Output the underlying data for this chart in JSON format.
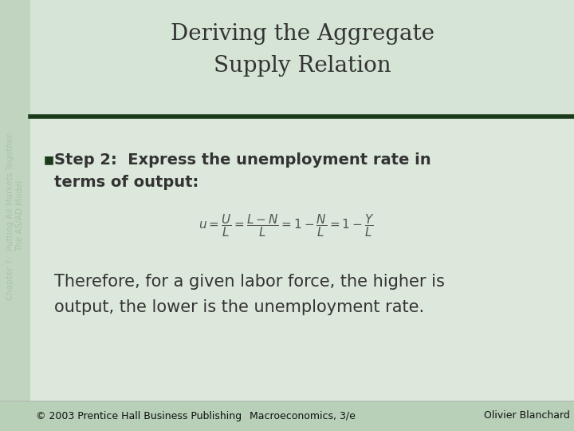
{
  "title_line1": "Deriving the Aggregate",
  "title_line2": "Supply Relation",
  "bullet_text_line1": "Step 2:  Express the unemployment rate in",
  "bullet_text_line2": "terms of output:",
  "therefore_line1": "Therefore, for a given labor force, the higher is",
  "therefore_line2": "output, the lower is the unemployment rate.",
  "footer_left": "© 2003 Prentice Hall Business Publishing",
  "footer_center": "Macroeconomics, 3/e",
  "footer_right": "Olivier Blanchard",
  "sidebar_text": "Chapter 7:  Putting All Markets Together:\nThe AS/AD Model",
  "bg_color": "#ccdccc",
  "main_bg": "#dde8dd",
  "title_bg": "#d5e4d5",
  "sidebar_color": "#c0d4c0",
  "dark_green": "#1a3a1a",
  "text_color": "#333333",
  "formula_color": "#555555",
  "footer_color": "#111111",
  "footer_bg": "#b8d0b8",
  "title_fontsize": 20,
  "bullet_fontsize": 14,
  "formula_fontsize": 11,
  "therefore_fontsize": 15,
  "footer_fontsize": 9,
  "sidebar_fontsize": 7.5
}
